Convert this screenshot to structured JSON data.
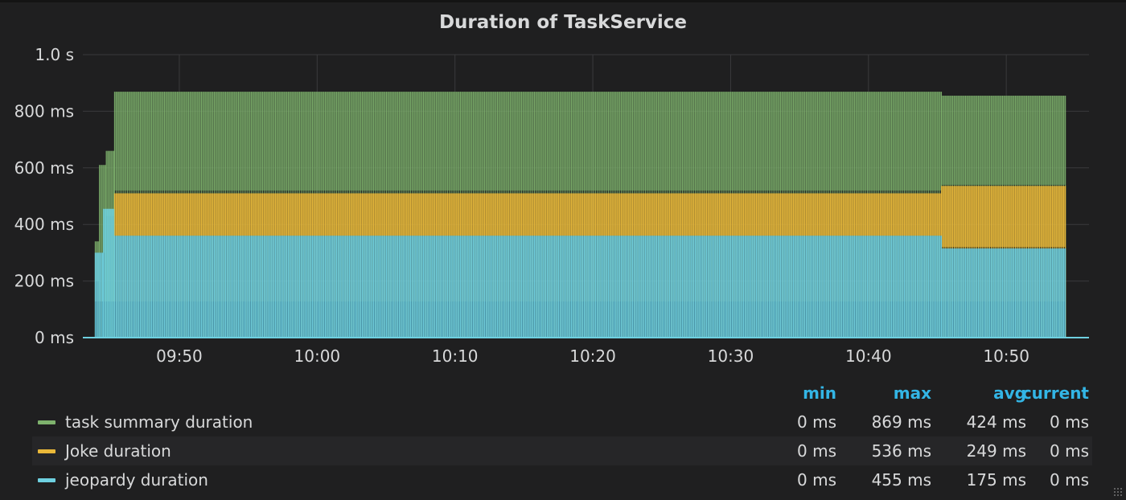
{
  "panel": {
    "title": "Duration of TaskService"
  },
  "chart_data": {
    "type": "area",
    "title": "Duration of TaskService",
    "stacked": false,
    "y_unit": "ms",
    "ylim": [
      0,
      1000
    ],
    "y_ticks": [
      0,
      200,
      400,
      600,
      800,
      1000
    ],
    "y_tick_labels": [
      "0 ms",
      "200 ms",
      "400 ms",
      "600 ms",
      "800 ms",
      "1.0 s"
    ],
    "xlim": [
      "09:43",
      "10:56"
    ],
    "x_ticks": [
      "09:50",
      "10:00",
      "10:10",
      "10:20",
      "10:30",
      "10:40",
      "10:50"
    ],
    "grid": true,
    "legend_placement": "bottom",
    "series": [
      {
        "name": "task summary duration",
        "color": "#7eb26d",
        "segments": [
          {
            "start": "09:43.9",
            "end": "09:44.2",
            "peak": 340,
            "floor": 200
          },
          {
            "start": "09:44.2",
            "end": "09:44.7",
            "peak": 610,
            "floor": 300
          },
          {
            "start": "09:44.7",
            "end": "09:45.3",
            "peak": 660,
            "floor": 430
          },
          {
            "start": "09:45.3",
            "end": "10:45.3",
            "peak": 869,
            "floor": 520
          },
          {
            "start": "10:45.3",
            "end": "10:54.3",
            "peak": 855,
            "floor": 540
          }
        ],
        "stats": {
          "min": "0 ms",
          "max": "869 ms",
          "avg": "424 ms",
          "current": "0 ms"
        }
      },
      {
        "name": "Joke duration",
        "color": "#eab839",
        "segments": [
          {
            "start": "09:45.3",
            "end": "10:45.3",
            "peak": 510,
            "floor": 360
          },
          {
            "start": "10:45.3",
            "end": "10:54.3",
            "peak": 536,
            "floor": 320
          }
        ],
        "stats": {
          "min": "0 ms",
          "max": "536 ms",
          "avg": "249 ms",
          "current": "0 ms"
        }
      },
      {
        "name": "jeopardy duration",
        "color": "#6ed0e0",
        "segments": [
          {
            "start": "09:43.9",
            "end": "09:44.5",
            "peak": 300,
            "floor": 0
          },
          {
            "start": "09:44.5",
            "end": "09:45.3",
            "peak": 455,
            "floor": 0
          },
          {
            "start": "09:45.3",
            "end": "10:45.3",
            "peak": 360,
            "floor": 0
          },
          {
            "start": "10:45.3",
            "end": "10:54.3",
            "peak": 315,
            "floor": 0
          }
        ],
        "stats": {
          "min": "0 ms",
          "max": "455 ms",
          "avg": "175 ms",
          "current": "0 ms"
        }
      }
    ]
  },
  "legend": {
    "headers": {
      "min": "min",
      "max": "max",
      "avg": "avg",
      "current": "current"
    },
    "rows": [
      {
        "name": "task summary duration",
        "color": "#7eb26d",
        "min": "0 ms",
        "max": "869 ms",
        "avg": "424 ms",
        "current": "0 ms"
      },
      {
        "name": "Joke duration",
        "color": "#eab839",
        "min": "0 ms",
        "max": "536 ms",
        "avg": "249 ms",
        "current": "0 ms"
      },
      {
        "name": "jeopardy duration",
        "color": "#6ed0e0",
        "min": "0 ms",
        "max": "455 ms",
        "avg": "175 ms",
        "current": "0 ms"
      }
    ]
  }
}
